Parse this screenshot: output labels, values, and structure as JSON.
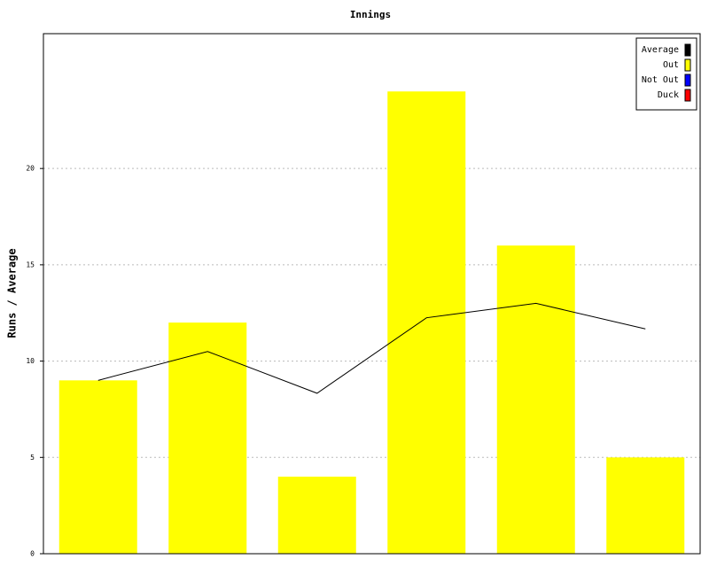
{
  "chart_data": {
    "type": "bar",
    "title": "Innings",
    "y_label": "Runs / Average",
    "categories": [
      null,
      null,
      null,
      null,
      null,
      null
    ],
    "series": [
      {
        "name": "Average",
        "color": "#000000",
        "type": "line",
        "values": [
          9,
          10.5,
          8.33,
          12.25,
          13,
          11.67
        ]
      },
      {
        "name": "Out",
        "color": "#ffff00",
        "type": "bar",
        "values": [
          9,
          12,
          4,
          24,
          16,
          5
        ]
      }
    ],
    "legend_extra": [
      {
        "name": "Not Out",
        "color": "#0000ff"
      },
      {
        "name": "Duck",
        "color": "#ff0000"
      }
    ],
    "ylim": [
      0,
      27
    ],
    "yticks": [
      0,
      5,
      10,
      15,
      20
    ],
    "grid": true,
    "legend": "top-right"
  }
}
